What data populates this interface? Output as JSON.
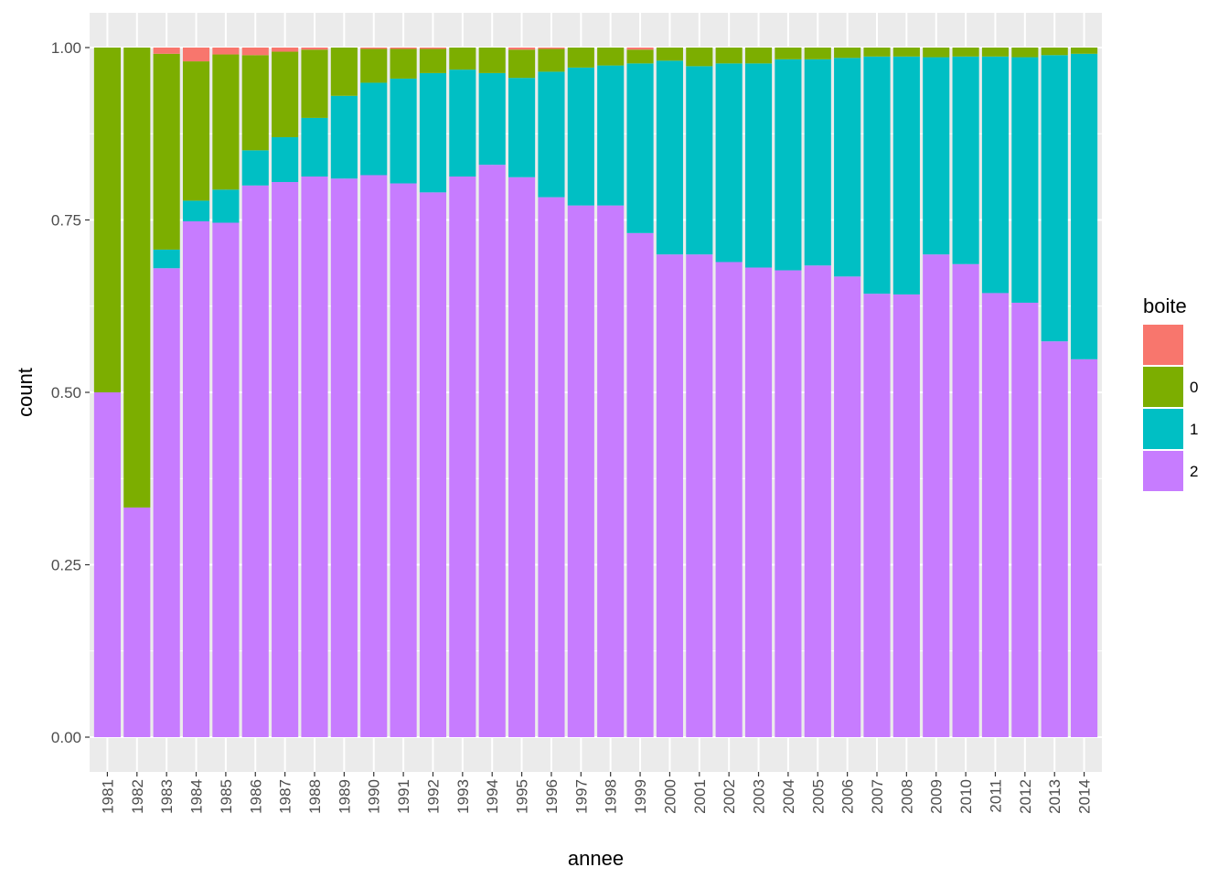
{
  "chart_data": {
    "type": "bar",
    "stacked": true,
    "xlabel": "annee",
    "ylabel": "count",
    "ylim": [
      0,
      1
    ],
    "yticks": [
      "0.00",
      "0.25",
      "0.50",
      "0.75",
      "1.00"
    ],
    "grid": true,
    "legend_position": "right",
    "legend": {
      "title": "boite",
      "items": [
        {
          "key": "NA",
          "label": "",
          "color": "#F8766D"
        },
        {
          "key": "0",
          "label": "0",
          "color": "#7CAE00"
        },
        {
          "key": "1",
          "label": "1",
          "color": "#00BFC4"
        },
        {
          "key": "2",
          "label": "2",
          "color": "#C77CFF"
        }
      ]
    },
    "categories": [
      "1981",
      "1982",
      "1983",
      "1984",
      "1985",
      "1986",
      "1987",
      "1988",
      "1989",
      "1990",
      "1991",
      "1992",
      "1993",
      "1994",
      "1995",
      "1996",
      "1997",
      "1998",
      "1999",
      "2000",
      "2001",
      "2002",
      "2003",
      "2004",
      "2005",
      "2006",
      "2007",
      "2008",
      "2009",
      "2010",
      "2011",
      "2012",
      "2013",
      "2014"
    ],
    "series": [
      {
        "key": "2",
        "values": [
          0.5,
          0.333,
          0.68,
          0.748,
          0.746,
          0.8,
          0.805,
          0.813,
          0.81,
          0.815,
          0.803,
          0.79,
          0.813,
          0.83,
          0.812,
          0.783,
          0.771,
          0.771,
          0.731,
          0.7,
          0.7,
          0.689,
          0.681,
          0.677,
          0.684,
          0.668,
          0.643,
          0.642,
          0.7,
          0.686,
          0.644,
          0.63,
          0.574,
          0.548
        ]
      },
      {
        "key": "1",
        "values": [
          0.0,
          0.0,
          0.027,
          0.03,
          0.048,
          0.051,
          0.065,
          0.085,
          0.12,
          0.134,
          0.152,
          0.173,
          0.155,
          0.133,
          0.144,
          0.182,
          0.2,
          0.203,
          0.246,
          0.281,
          0.273,
          0.288,
          0.296,
          0.306,
          0.299,
          0.317,
          0.344,
          0.345,
          0.286,
          0.301,
          0.343,
          0.356,
          0.415,
          0.443
        ]
      },
      {
        "key": "0",
        "values": [
          0.5,
          0.667,
          0.284,
          0.202,
          0.196,
          0.138,
          0.124,
          0.099,
          0.07,
          0.049,
          0.043,
          0.035,
          0.032,
          0.037,
          0.041,
          0.033,
          0.029,
          0.026,
          0.02,
          0.019,
          0.027,
          0.023,
          0.023,
          0.017,
          0.017,
          0.015,
          0.013,
          0.013,
          0.014,
          0.013,
          0.013,
          0.014,
          0.011,
          0.009
        ]
      },
      {
        "key": "NA",
        "values": [
          0.0,
          0.0,
          0.009,
          0.02,
          0.01,
          0.011,
          0.006,
          0.003,
          0.0,
          0.002,
          0.002,
          0.002,
          0.0,
          0.0,
          0.003,
          0.002,
          0.0,
          0.0,
          0.003,
          0.0,
          0.0,
          0.0,
          0.0,
          0.0,
          0.0,
          0.0,
          0.0,
          0.0,
          0.0,
          0.0,
          0.0,
          0.0,
          0.0,
          0.0
        ]
      }
    ]
  }
}
